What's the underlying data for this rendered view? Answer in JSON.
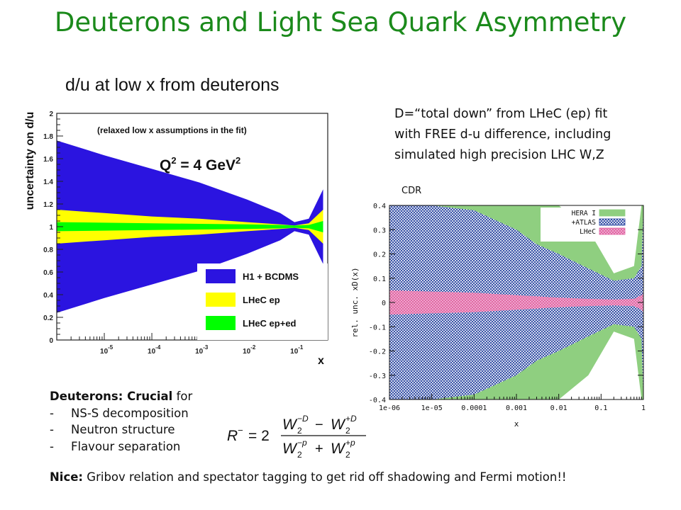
{
  "slide": {
    "title": "Deuterons and Light Sea Quark Asymmetry"
  },
  "right_text": {
    "lines": [
      "D=“total down” from LHeC (ep) fit",
      "with FREE d-u difference, including",
      "simulated high precision LHC W,Z"
    ],
    "caption": "CDR"
  },
  "notes": {
    "heading_bold": "Deuterons: Crucial",
    "heading_rest": " for",
    "items": [
      "NS-S decomposition",
      "Neutron structure",
      "Flavour separation"
    ],
    "nice_bold": "Nice:",
    "nice_rest": "  Gribov relation and spectator tagging to get rid off shadowing and Fermi motion!!"
  },
  "formula": {
    "lhs": "R",
    "lhs_sup": "−",
    "eq": "= 2",
    "num_a": "W",
    "num_a_sub": "2",
    "num_a_sup": "−D",
    "num_op": "−",
    "num_b": "W",
    "num_b_sub": "2",
    "num_b_sup": "+D",
    "den_a": "W",
    "den_a_sub": "2",
    "den_a_sup": "−p",
    "den_op": "+",
    "den_b": "W",
    "den_b_sub": "2",
    "den_b_sup": "+p"
  },
  "chart_data": [
    {
      "type": "area",
      "title": "d/u at low x from deuterons",
      "xlabel": "x",
      "ylabel": "uncertainty on d/u",
      "x_scale": "log",
      "xlim": [
        1e-06,
        0.5
      ],
      "ylim": [
        0,
        2
      ],
      "x_ticks": [
        {
          "value": 1e-05,
          "base": "10",
          "exp": "-5"
        },
        {
          "value": 0.0001,
          "base": "10",
          "exp": "-4"
        },
        {
          "value": 0.001,
          "base": "10",
          "exp": "-3"
        },
        {
          "value": 0.01,
          "base": "10",
          "exp": "-2"
        },
        {
          "value": 0.1,
          "base": "10",
          "exp": "-1"
        }
      ],
      "y_ticks": [
        "0",
        "0.2",
        "0.4",
        "0.6",
        "0.8",
        "1",
        "1.2",
        "1.4",
        "1.6",
        "1.8",
        "2"
      ],
      "annotations": [
        "(relaxed low x assumptions in the fit)",
        "Q² = 4 GeV²"
      ],
      "annotation_q2": {
        "text": "Q",
        "sup1": "2",
        "rest": " = 4 GeV",
        "sup2": "2"
      },
      "legend_position": "lower-right",
      "series": [
        {
          "name": "H1 + BCDMS",
          "color": "#2b14e0",
          "x": [
            1e-06,
            1e-05,
            0.0001,
            0.001,
            0.01,
            0.05,
            0.1,
            0.2,
            0.4
          ],
          "lower": [
            0.24,
            0.37,
            0.49,
            0.61,
            0.76,
            0.88,
            0.96,
            0.93,
            0.67
          ],
          "upper": [
            1.76,
            1.63,
            1.51,
            1.39,
            1.24,
            1.12,
            1.04,
            1.07,
            1.33
          ]
        },
        {
          "name": "LHeC ep",
          "color": "#ffff00",
          "x": [
            1e-06,
            1e-05,
            0.0001,
            0.001,
            0.01,
            0.05,
            0.1,
            0.2,
            0.4
          ],
          "lower": [
            0.85,
            0.88,
            0.91,
            0.93,
            0.96,
            0.98,
            0.99,
            0.97,
            0.85
          ],
          "upper": [
            1.15,
            1.12,
            1.09,
            1.07,
            1.04,
            1.02,
            1.01,
            1.03,
            1.15
          ]
        },
        {
          "name": "LHeC ep+ed",
          "color": "#00ff00",
          "x": [
            1e-06,
            1e-05,
            0.0001,
            0.001,
            0.01,
            0.05,
            0.1,
            0.2,
            0.4
          ],
          "lower": [
            0.96,
            0.965,
            0.97,
            0.975,
            0.98,
            0.985,
            0.99,
            0.985,
            0.95
          ],
          "upper": [
            1.04,
            1.035,
            1.03,
            1.025,
            1.02,
            1.015,
            1.01,
            1.015,
            1.05
          ]
        }
      ],
      "grid": false
    },
    {
      "type": "area",
      "xlabel": "x",
      "ylabel": "rel. unc. xD(x)",
      "x_scale": "log",
      "xlim": [
        1e-06,
        1
      ],
      "ylim": [
        -0.4,
        0.4
      ],
      "x_ticks": [
        "1e-06",
        "1e-05",
        "0.0001",
        "0.001",
        "0.01",
        "0.1",
        "1"
      ],
      "y_ticks": [
        "-0.4",
        "-0.3",
        "-0.2",
        "-0.1",
        "0",
        "0.1",
        "0.2",
        "0.3",
        "0.4"
      ],
      "legend_position": "top-right",
      "series": [
        {
          "name": "HERA I",
          "color": "#8fcf80",
          "pattern": "solid",
          "x": [
            1e-06,
            1e-05,
            0.0001,
            0.001,
            0.003,
            0.01,
            0.05,
            0.2,
            0.6,
            0.9,
            1
          ],
          "lower": [
            -0.4,
            -0.4,
            -0.4,
            -0.4,
            -0.4,
            -0.4,
            -0.3,
            -0.12,
            -0.15,
            -0.4,
            -0.4
          ],
          "upper": [
            0.4,
            0.4,
            0.4,
            0.4,
            0.4,
            0.4,
            0.3,
            0.12,
            0.15,
            0.4,
            0.4
          ]
        },
        {
          "name": "+ATLAS",
          "color": "#1c3a9c",
          "pattern": "hatched",
          "x": [
            1e-06,
            1e-05,
            0.0001,
            0.001,
            0.003,
            0.01,
            0.05,
            0.2,
            0.6,
            0.9,
            1
          ],
          "lower": [
            -0.4,
            -0.4,
            -0.38,
            -0.3,
            -0.24,
            -0.2,
            -0.14,
            -0.09,
            -0.1,
            -0.15,
            -0.4
          ],
          "upper": [
            0.4,
            0.4,
            0.38,
            0.3,
            0.24,
            0.2,
            0.14,
            0.09,
            0.1,
            0.15,
            0.4
          ]
        },
        {
          "name": "LHeC",
          "color": "#e060a0",
          "pattern": "hatched",
          "x": [
            1e-06,
            1e-05,
            0.0001,
            0.001,
            0.01,
            0.05,
            0.2,
            0.6,
            0.9,
            1
          ],
          "lower": [
            -0.05,
            -0.045,
            -0.04,
            -0.03,
            -0.02,
            -0.015,
            -0.012,
            -0.015,
            -0.03,
            -0.04
          ],
          "upper": [
            0.05,
            0.045,
            0.04,
            0.03,
            0.02,
            0.015,
            0.012,
            0.015,
            0.03,
            0.04
          ]
        }
      ],
      "grid": false
    }
  ]
}
